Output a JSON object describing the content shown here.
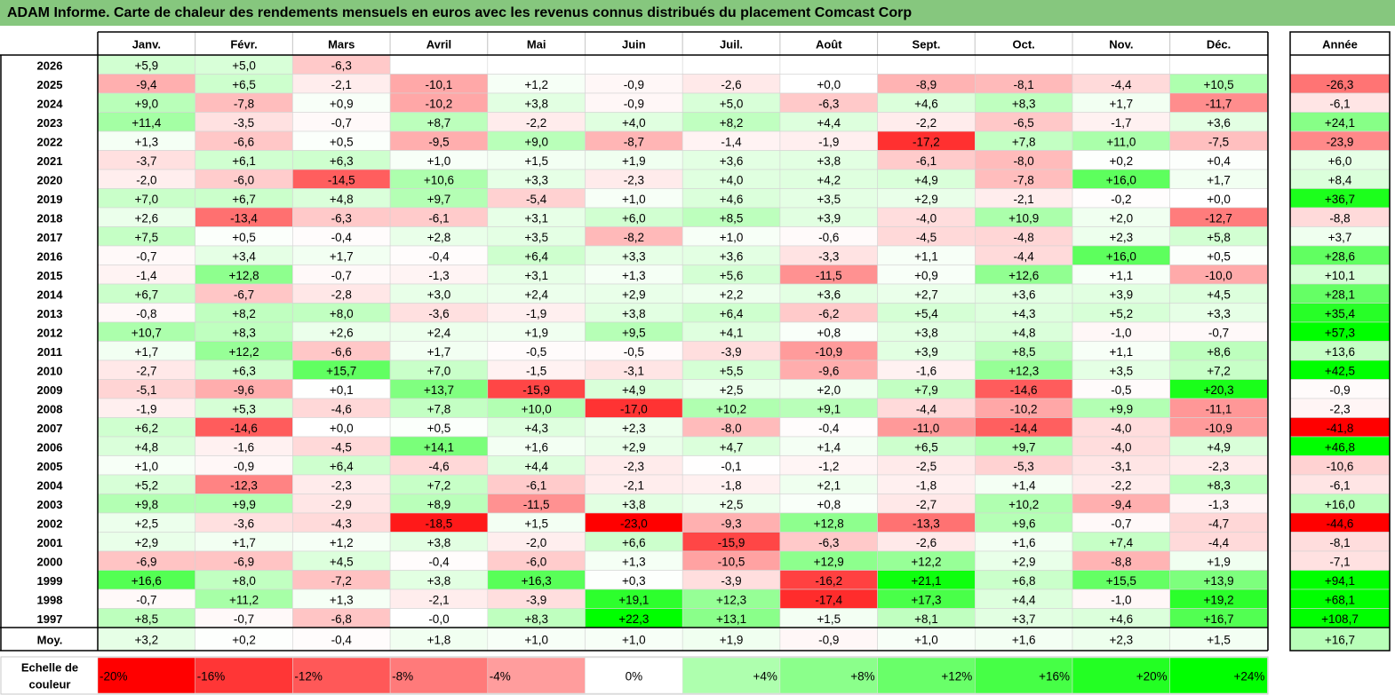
{
  "title": "ADAM Informe. Carte de chaleur des rendements mensuels en euros avec les revenus connus distribués du placement Comcast Corp",
  "chart_data": {
    "type": "heatmap",
    "months": [
      "Janv.",
      "Févr.",
      "Mars",
      "Avril",
      "Mai",
      "Juin",
      "Juil.",
      "Août",
      "Sept.",
      "Oct.",
      "Nov.",
      "Déc."
    ],
    "year_header": "Année",
    "rows": [
      {
        "year": "2026",
        "values": [
          "+5,9",
          "+5,0",
          "-6,3",
          "",
          "",
          "",
          "",
          "",
          "",
          "",
          "",
          ""
        ],
        "annual": ""
      },
      {
        "year": "2025",
        "values": [
          "-9,4",
          "+6,5",
          "-2,1",
          "-10,1",
          "+1,2",
          "-0,9",
          "-2,6",
          "+0,0",
          "-8,9",
          "-8,1",
          "-4,4",
          "+10,5"
        ],
        "annual": "-26,3"
      },
      {
        "year": "2024",
        "values": [
          "+9,0",
          "-7,8",
          "+0,9",
          "-10,2",
          "+3,8",
          "-0,9",
          "+5,0",
          "-6,3",
          "+4,6",
          "+8,3",
          "+1,7",
          "-11,7"
        ],
        "annual": "-6,1"
      },
      {
        "year": "2023",
        "values": [
          "+11,4",
          "-3,5",
          "-0,7",
          "+8,7",
          "-2,2",
          "+4,0",
          "+8,2",
          "+4,4",
          "-2,2",
          "-6,5",
          "-1,7",
          "+3,6"
        ],
        "annual": "+24,1"
      },
      {
        "year": "2022",
        "values": [
          "+1,3",
          "-6,6",
          "+0,5",
          "-9,5",
          "+9,0",
          "-8,7",
          "-1,4",
          "-1,9",
          "-17,2",
          "+7,8",
          "+11,0",
          "-7,5"
        ],
        "annual": "-23,9"
      },
      {
        "year": "2021",
        "values": [
          "-3,7",
          "+6,1",
          "+6,3",
          "+1,0",
          "+1,5",
          "+1,9",
          "+3,6",
          "+3,8",
          "-6,1",
          "-8,0",
          "+0,2",
          "+0,4"
        ],
        "annual": "+6,0"
      },
      {
        "year": "2020",
        "values": [
          "-2,0",
          "-6,0",
          "-14,5",
          "+10,6",
          "+3,3",
          "-2,3",
          "+4,0",
          "+4,2",
          "+4,9",
          "-7,8",
          "+16,0",
          "+1,7"
        ],
        "annual": "+8,4"
      },
      {
        "year": "2019",
        "values": [
          "+7,0",
          "+6,7",
          "+4,8",
          "+9,7",
          "-5,4",
          "+1,0",
          "+4,6",
          "+3,5",
          "+2,9",
          "-2,1",
          "-0,2",
          "+0,0"
        ],
        "annual": "+36,7"
      },
      {
        "year": "2018",
        "values": [
          "+2,6",
          "-13,4",
          "-6,3",
          "-6,1",
          "+3,1",
          "+6,0",
          "+8,5",
          "+3,9",
          "-4,0",
          "+10,9",
          "+2,0",
          "-12,7"
        ],
        "annual": "-8,8"
      },
      {
        "year": "2017",
        "values": [
          "+7,5",
          "+0,5",
          "-0,4",
          "+2,8",
          "+3,5",
          "-8,2",
          "+1,0",
          "-0,6",
          "-4,5",
          "-4,8",
          "+2,3",
          "+5,8"
        ],
        "annual": "+3,7"
      },
      {
        "year": "2016",
        "values": [
          "-0,7",
          "+3,4",
          "+1,7",
          "-0,4",
          "+6,4",
          "+3,3",
          "+3,6",
          "-3,3",
          "+1,1",
          "-4,4",
          "+16,0",
          "+0,5"
        ],
        "annual": "+28,6"
      },
      {
        "year": "2015",
        "values": [
          "-1,4",
          "+12,8",
          "-0,7",
          "-1,3",
          "+3,1",
          "+1,3",
          "+5,6",
          "-11,5",
          "+0,9",
          "+12,6",
          "+1,1",
          "-10,0"
        ],
        "annual": "+10,1"
      },
      {
        "year": "2014",
        "values": [
          "+6,7",
          "-6,7",
          "-2,8",
          "+3,0",
          "+2,4",
          "+2,9",
          "+2,2",
          "+3,6",
          "+2,7",
          "+3,6",
          "+3,9",
          "+4,5"
        ],
        "annual": "+28,1"
      },
      {
        "year": "2013",
        "values": [
          "-0,8",
          "+8,2",
          "+8,0",
          "-3,6",
          "-1,9",
          "+3,8",
          "+6,4",
          "-6,2",
          "+5,4",
          "+4,3",
          "+5,2",
          "+3,3"
        ],
        "annual": "+35,4"
      },
      {
        "year": "2012",
        "values": [
          "+10,7",
          "+8,3",
          "+2,6",
          "+2,4",
          "+1,9",
          "+9,5",
          "+4,1",
          "+0,8",
          "+3,8",
          "+4,8",
          "-1,0",
          "-0,7"
        ],
        "annual": "+57,3"
      },
      {
        "year": "2011",
        "values": [
          "+1,7",
          "+12,2",
          "-6,6",
          "+1,7",
          "-0,5",
          "-0,5",
          "-3,9",
          "-10,9",
          "+3,9",
          "+8,5",
          "+1,1",
          "+8,6"
        ],
        "annual": "+13,6"
      },
      {
        "year": "2010",
        "values": [
          "-2,7",
          "+6,3",
          "+15,7",
          "+7,0",
          "-1,5",
          "-3,1",
          "+5,5",
          "-9,6",
          "-1,6",
          "+12,3",
          "+3,5",
          "+7,2"
        ],
        "annual": "+42,5"
      },
      {
        "year": "2009",
        "values": [
          "-5,1",
          "-9,6",
          "+0,1",
          "+13,7",
          "-15,9",
          "+4,9",
          "+2,5",
          "+2,0",
          "+7,9",
          "-14,6",
          "-0,5",
          "+20,3"
        ],
        "annual": "-0,9"
      },
      {
        "year": "2008",
        "values": [
          "-1,9",
          "+5,3",
          "-4,6",
          "+7,8",
          "+10,0",
          "-17,0",
          "+10,2",
          "+9,1",
          "-4,4",
          "-10,2",
          "+9,9",
          "-11,1"
        ],
        "annual": "-2,3"
      },
      {
        "year": "2007",
        "values": [
          "+6,2",
          "-14,6",
          "+0,0",
          "+0,5",
          "+4,3",
          "+2,3",
          "-8,0",
          "-0,4",
          "-11,0",
          "-14,4",
          "-4,0",
          "-10,9"
        ],
        "annual": "-41,8"
      },
      {
        "year": "2006",
        "values": [
          "+4,8",
          "-1,6",
          "-4,5",
          "+14,1",
          "+1,6",
          "+2,9",
          "+4,7",
          "+1,4",
          "+6,5",
          "+9,7",
          "-4,0",
          "+4,9"
        ],
        "annual": "+46,8"
      },
      {
        "year": "2005",
        "values": [
          "+1,0",
          "-0,9",
          "+6,4",
          "-4,6",
          "+4,4",
          "-2,3",
          "-0,1",
          "-1,2",
          "-2,5",
          "-5,3",
          "-3,1",
          "-2,3"
        ],
        "annual": "-10,6"
      },
      {
        "year": "2004",
        "values": [
          "+5,2",
          "-12,3",
          "-2,3",
          "+7,2",
          "-6,1",
          "-2,1",
          "-1,8",
          "+2,1",
          "-1,8",
          "+1,4",
          "-2,2",
          "+8,3"
        ],
        "annual": "-6,1"
      },
      {
        "year": "2003",
        "values": [
          "+9,8",
          "+9,9",
          "-2,9",
          "+8,9",
          "-11,5",
          "+3,8",
          "+2,5",
          "+0,8",
          "-2,7",
          "+10,2",
          "-9,4",
          "-1,3"
        ],
        "annual": "+16,0"
      },
      {
        "year": "2002",
        "values": [
          "+2,5",
          "-3,6",
          "-4,3",
          "-18,5",
          "+1,5",
          "-23,0",
          "-9,3",
          "+12,8",
          "-13,3",
          "+9,6",
          "-0,7",
          "-4,7"
        ],
        "annual": "-44,6"
      },
      {
        "year": "2001",
        "values": [
          "+2,9",
          "+1,7",
          "+1,2",
          "+3,8",
          "-2,0",
          "+6,6",
          "-15,9",
          "-6,3",
          "-2,6",
          "+1,6",
          "+7,4",
          "-4,4"
        ],
        "annual": "-8,1"
      },
      {
        "year": "2000",
        "values": [
          "-6,9",
          "-6,9",
          "+4,5",
          "-0,4",
          "-6,0",
          "+1,3",
          "-10,5",
          "+12,9",
          "+12,2",
          "+2,9",
          "-8,8",
          "+1,9"
        ],
        "annual": "-7,1"
      },
      {
        "year": "1999",
        "values": [
          "+16,6",
          "+8,0",
          "-7,2",
          "+3,8",
          "+16,3",
          "+0,3",
          "-3,9",
          "-16,2",
          "+21,1",
          "+6,8",
          "+15,5",
          "+13,9"
        ],
        "annual": "+94,1"
      },
      {
        "year": "1998",
        "values": [
          "-0,7",
          "+11,2",
          "+1,3",
          "-2,1",
          "-3,9",
          "+19,1",
          "+12,3",
          "-17,4",
          "+17,3",
          "+4,4",
          "-1,0",
          "+19,2"
        ],
        "annual": "+68,1"
      },
      {
        "year": "1997",
        "values": [
          "+8,5",
          "-0,7",
          "-6,8",
          "-0,0",
          "+8,3",
          "+22,3",
          "+13,1",
          "+1,5",
          "+8,1",
          "+3,7",
          "+4,6",
          "+16,7"
        ],
        "annual": "+108,7"
      }
    ],
    "average": {
      "label": "Moy.",
      "values": [
        "+3,2",
        "+0,2",
        "-0,4",
        "+1,8",
        "+1,0",
        "+1,0",
        "+1,9",
        "-0,9",
        "+1,0",
        "+1,6",
        "+2,3",
        "+1,5"
      ],
      "annual": "+16,7"
    },
    "scale": {
      "label_line1": "Echelle de",
      "label_line2": "couleur",
      "labels": [
        "-20%",
        "-16%",
        "-12%",
        "-8%",
        "-4%",
        "0%",
        "+4%",
        "+8%",
        "+12%",
        "+16%",
        "+20%",
        "+24%"
      ],
      "values": [
        -20,
        -16,
        -12,
        -8,
        -4,
        0,
        4,
        8,
        12,
        16,
        20,
        24
      ]
    },
    "colors": {
      "negative_max": "#ff0000",
      "neutral": "#ffffff",
      "positive_max": "#00ff00",
      "title_bar": "#86c77e"
    }
  }
}
